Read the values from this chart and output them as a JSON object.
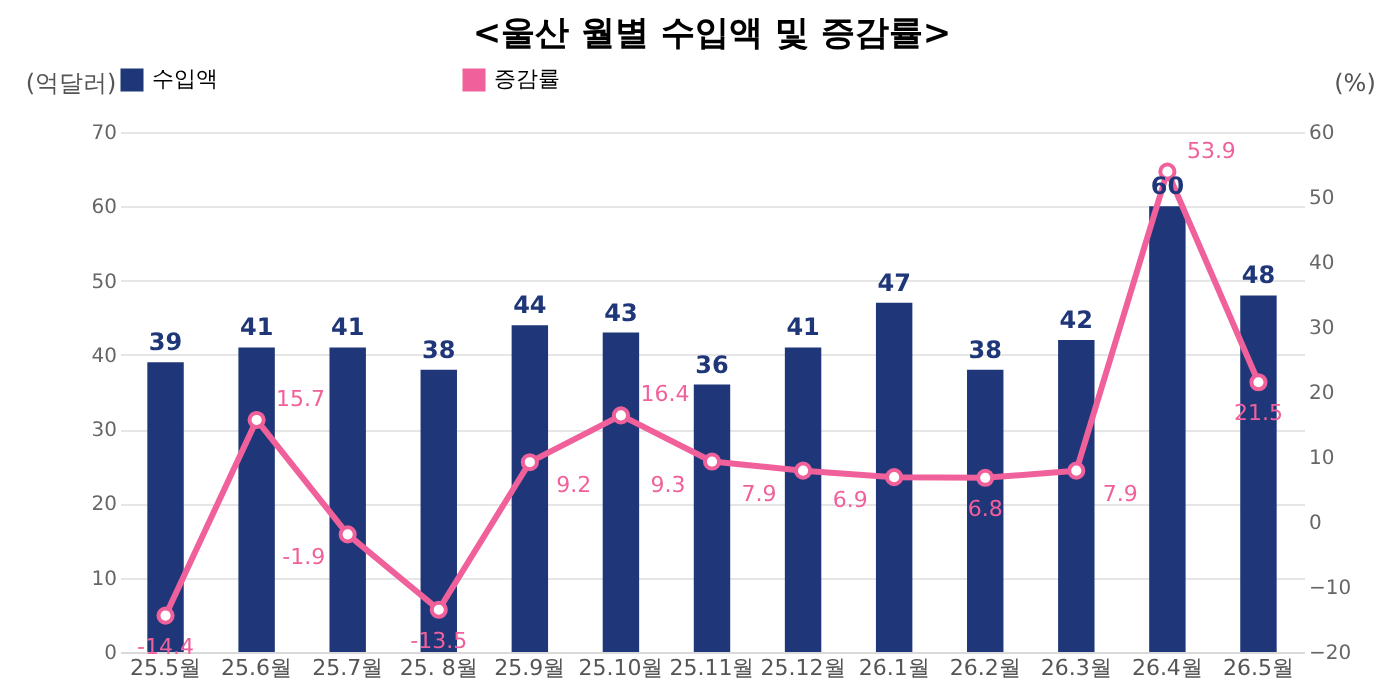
{
  "chart_data": {
    "type": "bar",
    "title": "<울산 월별 수입액 및 증감률>",
    "ylabel": "(억달러)",
    "y2label": "(%)",
    "categories": [
      "25.5월",
      "25.6월",
      "25.7월",
      "25. 8월",
      "25.9월",
      "25.10월",
      "25.11월",
      "25.12월",
      "26.1월",
      "26.2월",
      "26.3월",
      "26.4월",
      "26.5월"
    ],
    "series": [
      {
        "name": "수입액",
        "color": "#1f3778",
        "values": [
          39,
          41,
          41,
          38,
          44,
          43,
          36,
          41,
          47,
          38,
          42,
          60,
          48
        ]
      },
      {
        "name": "증감률",
        "type": "line",
        "axis": "y2",
        "color": "#f0609a",
        "marker": "circle",
        "values": [
          -14.4,
          15.7,
          -1.9,
          -13.5,
          9.2,
          16.4,
          9.3,
          7.9,
          6.9,
          6.8,
          7.9,
          53.9,
          21.5
        ]
      }
    ],
    "ylim": [
      0,
      70
    ],
    "yticks": [
      0,
      10,
      20,
      30,
      40,
      50,
      60,
      70
    ],
    "y2lim": [
      -20,
      60
    ],
    "y2ticks": [
      -20,
      -10,
      0,
      10,
      20,
      30,
      40,
      50,
      60
    ],
    "data_labels": true,
    "grid": "y",
    "legend": "top"
  }
}
